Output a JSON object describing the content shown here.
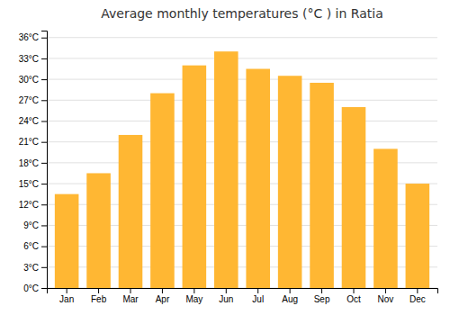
{
  "chart_data": {
    "type": "bar",
    "title": "Average monthly temperatures (°C ) in Ratia",
    "categories": [
      "Jan",
      "Feb",
      "Mar",
      "Apr",
      "May",
      "Jun",
      "Jul",
      "Aug",
      "Sep",
      "Oct",
      "Nov",
      "Dec"
    ],
    "values": [
      13.5,
      16.5,
      22.0,
      28.0,
      32.0,
      34.0,
      31.5,
      30.5,
      29.5,
      26.0,
      20.0,
      15.0
    ],
    "color": "#FFB733",
    "ylim": [
      0,
      37
    ],
    "yticks": [
      {
        "value": 0,
        "label": "0°C"
      },
      {
        "value": 3,
        "label": "3°C"
      },
      {
        "value": 6,
        "label": "6°C"
      },
      {
        "value": 9,
        "label": "9°C"
      },
      {
        "value": 12,
        "label": "12°C"
      },
      {
        "value": 15,
        "label": "15°C"
      },
      {
        "value": 18,
        "label": "18°C"
      },
      {
        "value": 21,
        "label": "21°C"
      },
      {
        "value": 24,
        "label": "24°C"
      },
      {
        "value": 27,
        "label": "27°C"
      },
      {
        "value": 30,
        "label": "30°C"
      },
      {
        "value": 33,
        "label": "33°C"
      },
      {
        "value": 36,
        "label": "36°C"
      }
    ],
    "grid": true
  }
}
